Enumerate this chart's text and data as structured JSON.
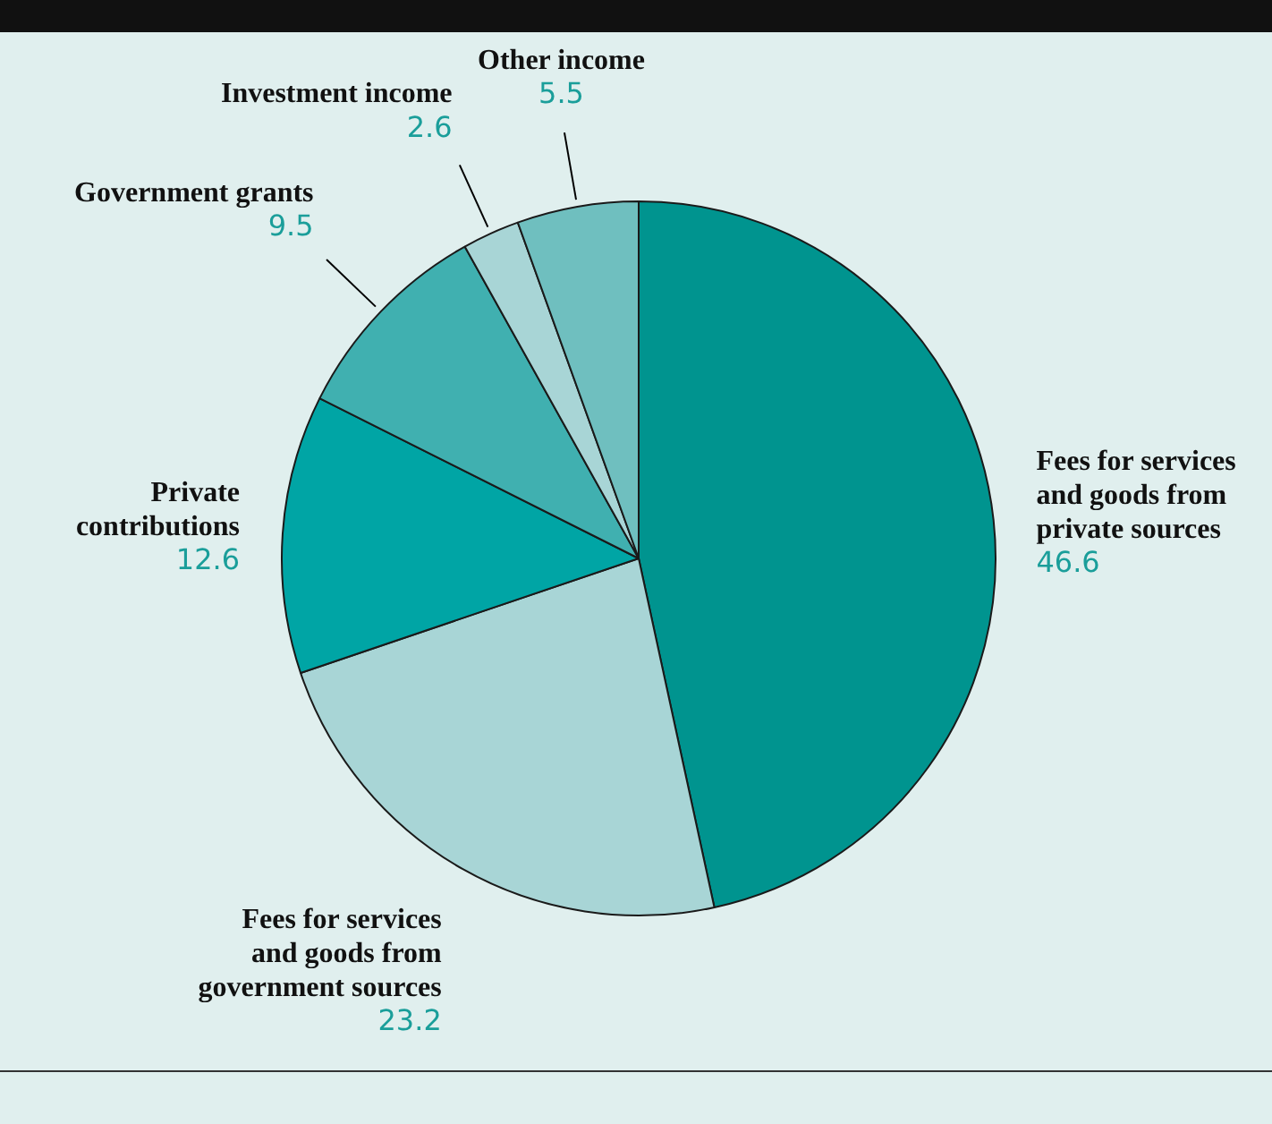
{
  "chart_data": {
    "type": "pie",
    "categories": [
      "Fees for services and goods from private sources",
      "Fees for services and goods from government sources",
      "Private contributions",
      "Government grants",
      "Investment income",
      "Other income"
    ],
    "values": [
      46.6,
      23.2,
      12.6,
      9.5,
      2.6,
      5.5
    ],
    "colors": [
      "#00948f",
      "#a8d5d6",
      "#00a5a5",
      "#40b0b0",
      "#a8d5d6",
      "#6fbfbf"
    ],
    "data_labels": true
  }
}
